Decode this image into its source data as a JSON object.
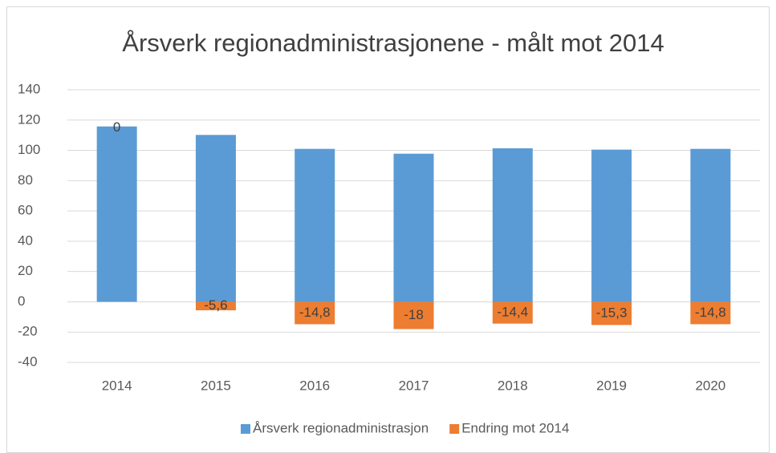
{
  "chart_data": {
    "type": "bar",
    "title": "Årsverk regionadministrasjonene - målt mot 2014",
    "categories": [
      "2014",
      "2015",
      "2016",
      "2017",
      "2018",
      "2019",
      "2020"
    ],
    "series": [
      {
        "name": "Årsverk regionadministrasjon",
        "color": "#5b9bd5",
        "values": [
          115.8,
          110.2,
          101,
          97.8,
          101.4,
          100.5,
          101
        ]
      },
      {
        "name": "Endring mot 2014",
        "color": "#ed7d31",
        "values": [
          0,
          -5.6,
          -14.8,
          -18,
          -14.4,
          -15.3,
          -14.8
        ],
        "value_labels": [
          "0",
          "-5,6",
          "-14,8",
          "-18",
          "-14,4",
          "-15,3",
          "-14,8"
        ]
      }
    ],
    "ylim": [
      -40,
      140
    ],
    "yticks": [
      -40,
      -20,
      0,
      20,
      40,
      60,
      80,
      100,
      120,
      140
    ],
    "grid": true,
    "legend": "bottom"
  }
}
